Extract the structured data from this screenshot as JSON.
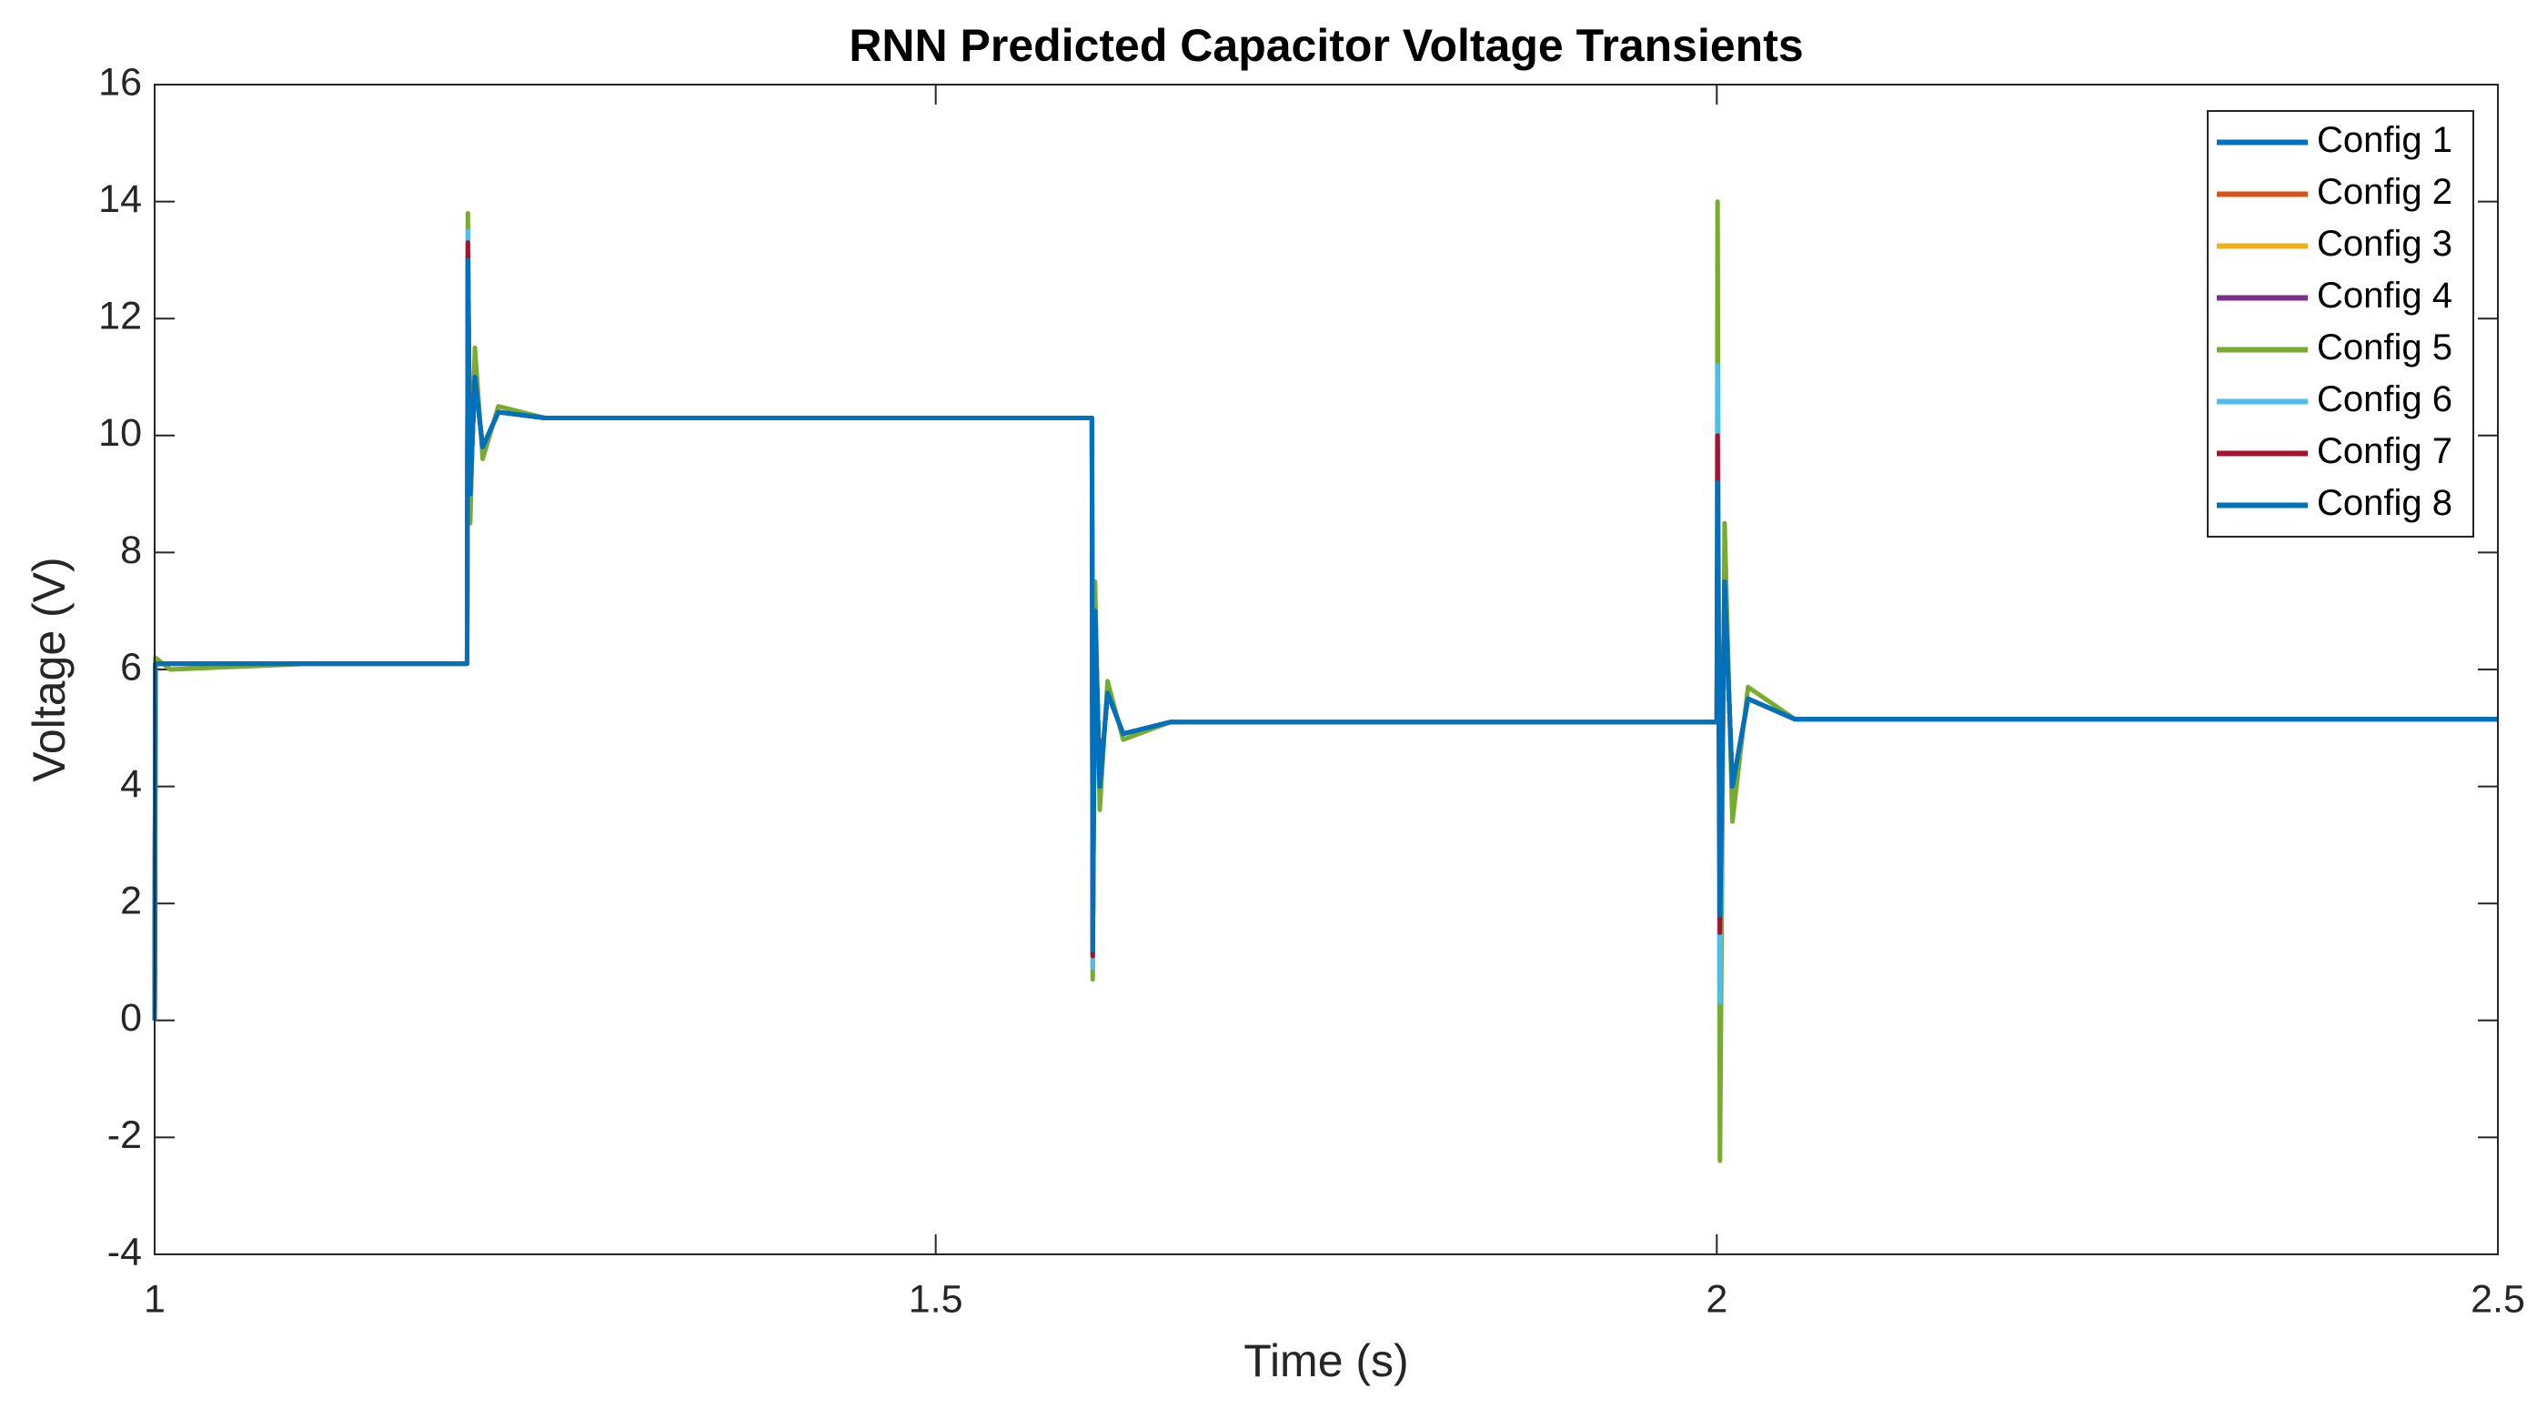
{
  "chart_data": {
    "type": "line",
    "title": "RNN Predicted Capacitor Voltage Transients",
    "x_label": "Time (s)",
    "y_label": "Voltage (V)",
    "x": [
      1.0,
      1.0005,
      1.01,
      1.1,
      1.2,
      1.2005,
      1.202,
      1.205,
      1.21,
      1.22,
      1.25,
      1.4,
      1.6,
      1.6005,
      1.602,
      1.605,
      1.61,
      1.62,
      1.65,
      1.8,
      2.0,
      2.0005,
      2.002,
      2.005,
      2.01,
      2.02,
      2.05,
      2.3,
      2.5
    ],
    "series": [
      {
        "name": "Config 1",
        "color": "#0072BD",
        "values": [
          0,
          6.1,
          6.1,
          6.1,
          6.1,
          12.5,
          9.0,
          11.0,
          9.8,
          10.4,
          10.3,
          10.3,
          10.3,
          2.0,
          7.0,
          4.0,
          5.6,
          4.9,
          5.1,
          5.1,
          5.1,
          8.5,
          2.5,
          7.5,
          4.0,
          5.5,
          5.15,
          5.15,
          5.15
        ]
      },
      {
        "name": "Config 2",
        "color": "#D95319",
        "values": [
          0,
          6.1,
          6.1,
          6.1,
          6.1,
          12.8,
          9.0,
          11.0,
          9.8,
          10.4,
          10.3,
          10.3,
          10.3,
          1.8,
          7.0,
          4.0,
          5.6,
          4.9,
          5.1,
          5.1,
          5.1,
          9.0,
          2.2,
          7.5,
          4.0,
          5.5,
          5.15,
          5.15,
          5.15
        ]
      },
      {
        "name": "Config 3",
        "color": "#EDB120",
        "values": [
          0,
          6.1,
          6.1,
          6.1,
          6.1,
          12.6,
          9.0,
          11.0,
          9.8,
          10.4,
          10.3,
          10.3,
          10.3,
          1.9,
          7.0,
          4.0,
          5.6,
          4.9,
          5.1,
          5.1,
          5.1,
          8.8,
          2.4,
          7.5,
          4.0,
          5.5,
          5.15,
          5.15,
          5.15
        ]
      },
      {
        "name": "Config 4",
        "color": "#7E2F8E",
        "values": [
          0,
          6.1,
          6.1,
          6.1,
          6.1,
          12.9,
          9.0,
          11.0,
          9.8,
          10.4,
          10.3,
          10.3,
          10.3,
          1.5,
          7.0,
          4.0,
          5.6,
          4.9,
          5.1,
          5.1,
          5.1,
          9.5,
          2.0,
          7.5,
          4.0,
          5.5,
          5.15,
          5.15,
          5.15
        ]
      },
      {
        "name": "Config 5",
        "color": "#77AC30",
        "values": [
          0,
          6.2,
          6.0,
          6.1,
          6.1,
          13.8,
          8.5,
          11.5,
          9.6,
          10.5,
          10.3,
          10.3,
          10.3,
          0.7,
          7.5,
          3.6,
          5.8,
          4.8,
          5.1,
          5.1,
          5.1,
          14.0,
          -2.4,
          8.5,
          3.4,
          5.7,
          5.15,
          5.15,
          5.15
        ]
      },
      {
        "name": "Config 6",
        "color": "#4DBEEE",
        "values": [
          0,
          6.1,
          6.1,
          6.1,
          6.1,
          13.5,
          9.0,
          11.0,
          9.8,
          10.4,
          10.3,
          10.3,
          10.3,
          0.9,
          7.0,
          4.0,
          5.6,
          4.9,
          5.1,
          5.1,
          5.1,
          11.2,
          0.3,
          7.5,
          4.0,
          5.5,
          5.15,
          5.15,
          5.15
        ]
      },
      {
        "name": "Config 7",
        "color": "#A2142F",
        "values": [
          0,
          6.1,
          6.1,
          6.1,
          6.1,
          13.3,
          9.0,
          11.0,
          9.8,
          10.4,
          10.3,
          10.3,
          10.3,
          1.1,
          7.0,
          4.0,
          5.6,
          4.9,
          5.1,
          5.1,
          5.1,
          10.0,
          1.5,
          7.5,
          4.0,
          5.5,
          5.15,
          5.15,
          5.15
        ]
      },
      {
        "name": "Config 8",
        "color": "#0072BD",
        "values": [
          0,
          6.1,
          6.1,
          6.1,
          6.1,
          13.0,
          9.0,
          11.0,
          9.8,
          10.4,
          10.3,
          10.3,
          10.3,
          1.2,
          7.0,
          4.0,
          5.6,
          4.9,
          5.1,
          5.1,
          5.1,
          9.2,
          1.8,
          7.5,
          4.0,
          5.5,
          5.15,
          5.15,
          5.15
        ]
      }
    ],
    "xlim": [
      1,
      2.5
    ],
    "xticks": [
      1,
      1.5,
      2,
      2.5
    ],
    "ylim": [
      -4,
      16
    ],
    "yticks": [
      -4,
      -2,
      0,
      2,
      4,
      6,
      8,
      10,
      12,
      14,
      16
    ],
    "grid": false,
    "legend": "northeast"
  }
}
